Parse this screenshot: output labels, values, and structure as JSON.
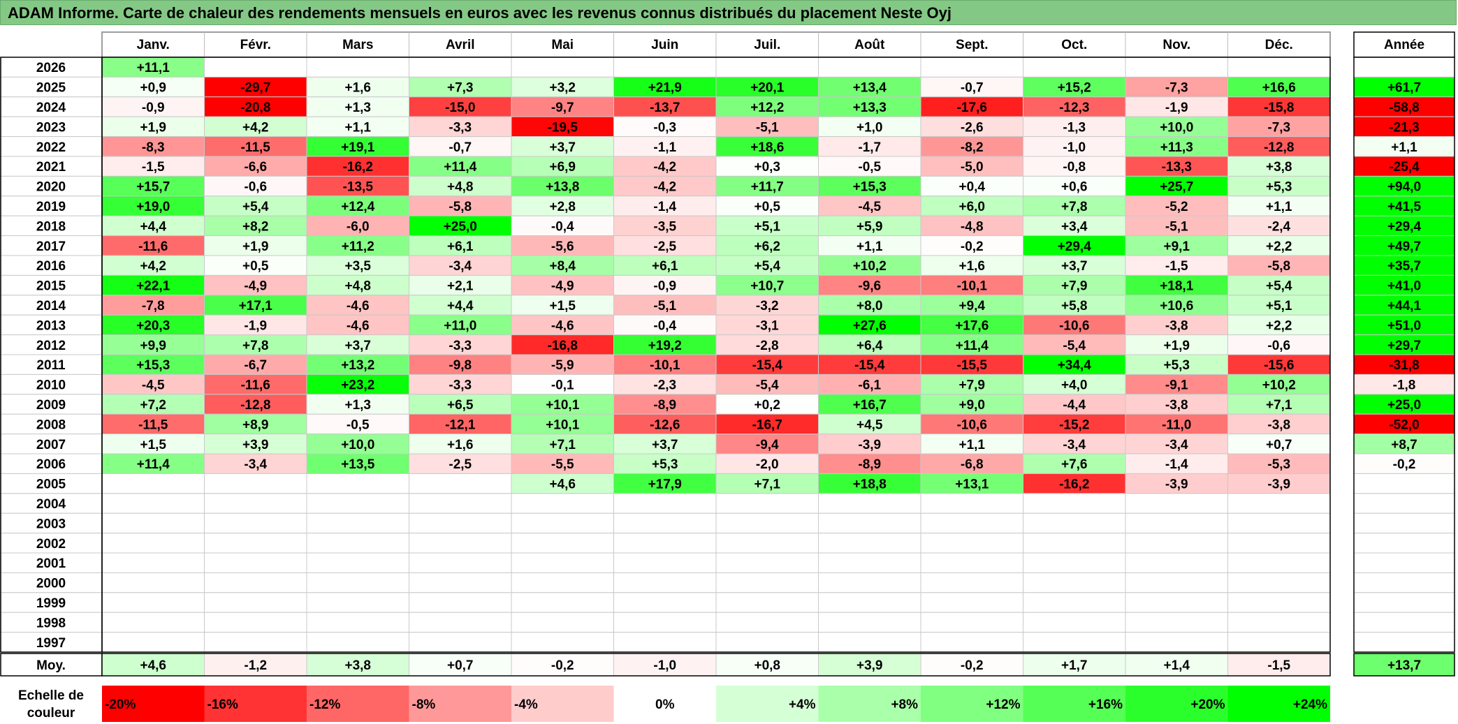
{
  "title": "ADAM Informe. Carte de chaleur des rendements mensuels en euros avec les revenus connus distribués du placement Neste Oyj",
  "chart_data": {
    "type": "heatmap",
    "months": [
      "Janv.",
      "Févr.",
      "Mars",
      "Avril",
      "Mai",
      "Juin",
      "Juil.",
      "Août",
      "Sept.",
      "Oct.",
      "Nov.",
      "Déc."
    ],
    "year_header": "Année",
    "rows": [
      {
        "year": "2026",
        "values": [
          "+11,1",
          "",
          "",
          "",
          "",
          "",
          "",
          "",
          "",
          "",
          "",
          ""
        ],
        "annual": ""
      },
      {
        "year": "2025",
        "values": [
          "+0,9",
          "-29,7",
          "+1,6",
          "+7,3",
          "+3,2",
          "+21,9",
          "+20,1",
          "+13,4",
          "-0,7",
          "+15,2",
          "-7,3",
          "+16,6"
        ],
        "annual": "+61,7"
      },
      {
        "year": "2024",
        "values": [
          "-0,9",
          "-20,8",
          "+1,3",
          "-15,0",
          "-9,7",
          "-13,7",
          "+12,2",
          "+13,3",
          "-17,6",
          "-12,3",
          "-1,9",
          "-15,8"
        ],
        "annual": "-58,8"
      },
      {
        "year": "2023",
        "values": [
          "+1,9",
          "+4,2",
          "+1,1",
          "-3,3",
          "-19,5",
          "-0,3",
          "-5,1",
          "+1,0",
          "-2,6",
          "-1,3",
          "+10,0",
          "-7,3"
        ],
        "annual": "-21,3"
      },
      {
        "year": "2022",
        "values": [
          "-8,3",
          "-11,5",
          "+19,1",
          "-0,7",
          "+3,7",
          "-1,1",
          "+18,6",
          "-1,7",
          "-8,2",
          "-1,0",
          "+11,3",
          "-12,8"
        ],
        "annual": "+1,1"
      },
      {
        "year": "2021",
        "values": [
          "-1,5",
          "-6,6",
          "-16,2",
          "+11,4",
          "+6,9",
          "-4,2",
          "+0,3",
          "-0,5",
          "-5,0",
          "-0,8",
          "-13,3",
          "+3,8"
        ],
        "annual": "-25,4"
      },
      {
        "year": "2020",
        "values": [
          "+15,7",
          "-0,6",
          "-13,5",
          "+4,8",
          "+13,8",
          "-4,2",
          "+11,7",
          "+15,3",
          "+0,4",
          "+0,6",
          "+25,7",
          "+5,3"
        ],
        "annual": "+94,0"
      },
      {
        "year": "2019",
        "values": [
          "+19,0",
          "+5,4",
          "+12,4",
          "-5,8",
          "+2,8",
          "-1,4",
          "+0,5",
          "-4,5",
          "+6,0",
          "+7,8",
          "-5,2",
          "+1,1"
        ],
        "annual": "+41,5"
      },
      {
        "year": "2018",
        "values": [
          "+4,4",
          "+8,2",
          "-6,0",
          "+25,0",
          "-0,4",
          "-3,5",
          "+5,1",
          "+5,9",
          "-4,8",
          "+3,4",
          "-5,1",
          "-2,4"
        ],
        "annual": "+29,4"
      },
      {
        "year": "2017",
        "values": [
          "-11,6",
          "+1,9",
          "+11,2",
          "+6,1",
          "-5,6",
          "-2,5",
          "+6,2",
          "+1,1",
          "-0,2",
          "+29,4",
          "+9,1",
          "+2,2"
        ],
        "annual": "+49,7"
      },
      {
        "year": "2016",
        "values": [
          "+4,2",
          "+0,5",
          "+3,5",
          "-3,4",
          "+8,4",
          "+6,1",
          "+5,4",
          "+10,2",
          "+1,6",
          "+3,7",
          "-1,5",
          "-5,8"
        ],
        "annual": "+35,7"
      },
      {
        "year": "2015",
        "values": [
          "+22,1",
          "-4,9",
          "+4,8",
          "+2,1",
          "-4,9",
          "-0,9",
          "+10,7",
          "-9,6",
          "-10,1",
          "+7,9",
          "+18,1",
          "+5,4"
        ],
        "annual": "+41,0"
      },
      {
        "year": "2014",
        "values": [
          "-7,8",
          "+17,1",
          "-4,6",
          "+4,4",
          "+1,5",
          "-5,1",
          "-3,2",
          "+8,0",
          "+9,4",
          "+5,8",
          "+10,6",
          "+5,1"
        ],
        "annual": "+44,1"
      },
      {
        "year": "2013",
        "values": [
          "+20,3",
          "-1,9",
          "-4,6",
          "+11,0",
          "-4,6",
          "-0,4",
          "-3,1",
          "+27,6",
          "+17,6",
          "-10,6",
          "-3,8",
          "+2,2"
        ],
        "annual": "+51,0"
      },
      {
        "year": "2012",
        "values": [
          "+9,9",
          "+7,8",
          "+3,7",
          "-3,3",
          "-16,8",
          "+19,2",
          "-2,8",
          "+6,4",
          "+11,4",
          "-5,4",
          "+1,9",
          "-0,6"
        ],
        "annual": "+29,7"
      },
      {
        "year": "2011",
        "values": [
          "+15,3",
          "-6,7",
          "+13,2",
          "-9,8",
          "-5,9",
          "-10,1",
          "-15,4",
          "-15,4",
          "-15,5",
          "+34,4",
          "+5,3",
          "-15,6"
        ],
        "annual": "-31,8"
      },
      {
        "year": "2010",
        "values": [
          "-4,5",
          "-11,6",
          "+23,2",
          "-3,3",
          "-0,1",
          "-2,3",
          "-5,4",
          "-6,1",
          "+7,9",
          "+4,0",
          "-9,1",
          "+10,2"
        ],
        "annual": "-1,8"
      },
      {
        "year": "2009",
        "values": [
          "+7,2",
          "-12,8",
          "+1,3",
          "+6,5",
          "+10,1",
          "-8,9",
          "+0,2",
          "+16,7",
          "+9,0",
          "-4,4",
          "-3,8",
          "+7,1"
        ],
        "annual": "+25,0"
      },
      {
        "year": "2008",
        "values": [
          "-11,5",
          "+8,9",
          "-0,5",
          "-12,1",
          "+10,1",
          "-12,6",
          "-16,7",
          "+4,5",
          "-10,6",
          "-15,2",
          "-11,0",
          "-3,8"
        ],
        "annual": "-52,0"
      },
      {
        "year": "2007",
        "values": [
          "+1,5",
          "+3,9",
          "+10,0",
          "+1,6",
          "+7,1",
          "+3,7",
          "-9,4",
          "-3,9",
          "+1,1",
          "-3,4",
          "-3,4",
          "+0,7"
        ],
        "annual": "+8,7"
      },
      {
        "year": "2006",
        "values": [
          "+11,4",
          "-3,4",
          "+13,5",
          "-2,5",
          "-5,5",
          "+5,3",
          "-2,0",
          "-8,9",
          "-6,8",
          "+7,6",
          "-1,4",
          "-5,3"
        ],
        "annual": "-0,2"
      },
      {
        "year": "2005",
        "values": [
          "",
          "",
          "",
          "",
          "+4,6",
          "+17,9",
          "+7,1",
          "+18,8",
          "+13,1",
          "-16,2",
          "-3,9",
          "-3,9"
        ],
        "annual": ""
      },
      {
        "year": "2004",
        "values": [
          "",
          "",
          "",
          "",
          "",
          "",
          "",
          "",
          "",
          "",
          "",
          ""
        ],
        "annual": ""
      },
      {
        "year": "2003",
        "values": [
          "",
          "",
          "",
          "",
          "",
          "",
          "",
          "",
          "",
          "",
          "",
          ""
        ],
        "annual": ""
      },
      {
        "year": "2002",
        "values": [
          "",
          "",
          "",
          "",
          "",
          "",
          "",
          "",
          "",
          "",
          "",
          ""
        ],
        "annual": ""
      },
      {
        "year": "2001",
        "values": [
          "",
          "",
          "",
          "",
          "",
          "",
          "",
          "",
          "",
          "",
          "",
          ""
        ],
        "annual": ""
      },
      {
        "year": "2000",
        "values": [
          "",
          "",
          "",
          "",
          "",
          "",
          "",
          "",
          "",
          "",
          "",
          ""
        ],
        "annual": ""
      },
      {
        "year": "1999",
        "values": [
          "",
          "",
          "",
          "",
          "",
          "",
          "",
          "",
          "",
          "",
          "",
          ""
        ],
        "annual": ""
      },
      {
        "year": "1998",
        "values": [
          "",
          "",
          "",
          "",
          "",
          "",
          "",
          "",
          "",
          "",
          "",
          ""
        ],
        "annual": ""
      },
      {
        "year": "1997",
        "values": [
          "",
          "",
          "",
          "",
          "",
          "",
          "",
          "",
          "",
          "",
          "",
          ""
        ],
        "annual": ""
      }
    ],
    "average": {
      "label": "Moy.",
      "values": [
        "+4,6",
        "-1,2",
        "+3,8",
        "+0,7",
        "-0,2",
        "-1,0",
        "+0,8",
        "+3,9",
        "-0,2",
        "+1,7",
        "+1,4",
        "-1,5"
      ],
      "annual": "+13,7"
    },
    "scale": {
      "label_line1": "Echelle de",
      "label_line2": "couleur",
      "stops": [
        "-20%",
        "-16%",
        "-12%",
        "-8%",
        "-4%",
        "0%",
        "+4%",
        "+8%",
        "+12%",
        "+16%",
        "+20%",
        "+24%"
      ],
      "stop_values": [
        -20,
        -16,
        -12,
        -8,
        -4,
        0,
        4,
        8,
        12,
        16,
        20,
        24
      ]
    },
    "colors": {
      "negative_max": "#ff0000",
      "neutral": "#ffffff",
      "positive_max": "#00ff00"
    }
  }
}
